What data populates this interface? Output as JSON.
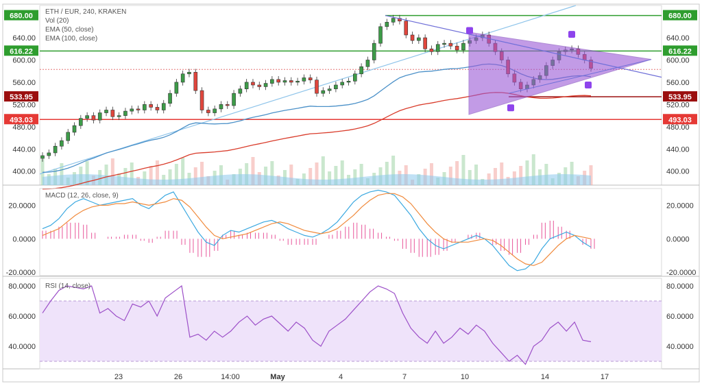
{
  "chart_data": [
    {
      "type": "candlestick",
      "title": "ETH / EUR, 240, KRAKEN",
      "indicator_labels": [
        "Vol (20)",
        "EMA (50, close)",
        "EMA (100, close)"
      ],
      "x_ticks": [
        "23",
        "26",
        "14:00",
        "May",
        "4",
        "7",
        "10",
        "14",
        "17"
      ],
      "y_ticks": [
        400,
        440,
        480,
        520,
        560,
        600,
        640,
        680
      ],
      "ylim": [
        375,
        698
      ],
      "price_tags": [
        {
          "value": "680.00",
          "color": "#2e9d2e"
        },
        {
          "value": "616.22",
          "color": "#2e9d2e"
        },
        {
          "value": "533.95",
          "color": "#9b0e0e"
        },
        {
          "value": "493.03",
          "color": "#e53935"
        }
      ],
      "left_tags_only": [
        "680.00",
        "616.22",
        "533.95",
        "493.03"
      ],
      "levels": [
        {
          "value": 680,
          "color": "#2e9d2e"
        },
        {
          "value": 616.22,
          "color": "#2e9d2e"
        },
        {
          "value": 533.95,
          "color": "#9b0e0e"
        },
        {
          "value": 493.03,
          "color": "#e53935"
        }
      ],
      "colors": {
        "up": "#3d9b48",
        "down": "#e0463d",
        "ema50": "#4a90c8",
        "ema100": "#d93b2a",
        "triangle": "#9b59d6",
        "trend": "#6f6fd8"
      },
      "close_sample": [
        428,
        433,
        445,
        455,
        470,
        482,
        495,
        500,
        492,
        505,
        510,
        498,
        500,
        508,
        512,
        510,
        520,
        515,
        510,
        522,
        540,
        560,
        575,
        578,
        545,
        510,
        505,
        512,
        520,
        518,
        540,
        548,
        560,
        555,
        552,
        558,
        565,
        560,
        563,
        560,
        562,
        568,
        564,
        540,
        545,
        548,
        555,
        560,
        562,
        575,
        588,
        600,
        630,
        660,
        668,
        675,
        670,
        645,
        635,
        640,
        620,
        615,
        628,
        630,
        625,
        618,
        630,
        635,
        640,
        645,
        630,
        615,
        600,
        575,
        560,
        548,
        555,
        565,
        572,
        590,
        600,
        615,
        618,
        620,
        610,
        600,
        585
      ]
    },
    {
      "type": "line",
      "title": "MACD (12, 26, close, 9)",
      "y_ticks": [
        "20.0000",
        "0.0000",
        "-20.0000"
      ],
      "ylim": [
        -22,
        30
      ],
      "series": [
        {
          "name": "MACD",
          "color": "#3aa8e0",
          "values": [
            6,
            8,
            12,
            18,
            22,
            24,
            22,
            20,
            21,
            22,
            23,
            24,
            20,
            18,
            22,
            26,
            28,
            20,
            12,
            4,
            -2,
            -4,
            2,
            5,
            4,
            6,
            8,
            10,
            11,
            9,
            6,
            4,
            2,
            1,
            3,
            6,
            10,
            16,
            22,
            26,
            28,
            29,
            28,
            26,
            20,
            14,
            6,
            0,
            -4,
            -6,
            -4,
            -2,
            0,
            2,
            0,
            -4,
            -10,
            -16,
            -19,
            -18,
            -14,
            -6,
            0,
            2,
            4,
            2,
            -2,
            -5
          ]
        },
        {
          "name": "Signal",
          "color": "#f08a3c",
          "values": [
            2,
            4,
            6,
            10,
            14,
            17,
            19,
            20,
            20,
            21,
            21,
            22,
            21,
            20,
            21,
            22,
            24,
            23,
            19,
            13,
            7,
            2,
            0,
            1,
            2,
            3,
            5,
            7,
            9,
            10,
            9,
            7,
            5,
            4,
            3,
            4,
            6,
            10,
            14,
            19,
            23,
            26,
            27,
            27,
            25,
            21,
            15,
            9,
            4,
            0,
            -2,
            -2,
            -2,
            -1,
            0,
            -1,
            -4,
            -8,
            -12,
            -15,
            -16,
            -14,
            -9,
            -4,
            0,
            2,
            1,
            0
          ]
        }
      ],
      "histogram_color": "#e8559a"
    },
    {
      "type": "line",
      "title": "RSI (14, close)",
      "y_ticks": [
        "80.0000",
        "60.0000",
        "40.0000"
      ],
      "ylim": [
        25,
        85
      ],
      "band": [
        30,
        70
      ],
      "series": [
        {
          "name": "RSI",
          "color": "#9c4fc8",
          "values": [
            62,
            70,
            77,
            80,
            79,
            78,
            80,
            62,
            65,
            60,
            57,
            68,
            66,
            70,
            60,
            72,
            76,
            80,
            46,
            48,
            44,
            50,
            46,
            50,
            56,
            60,
            54,
            58,
            60,
            55,
            50,
            56,
            52,
            44,
            40,
            50,
            54,
            58,
            64,
            70,
            76,
            80,
            78,
            75,
            62,
            52,
            46,
            42,
            50,
            42,
            46,
            52,
            48,
            54,
            50,
            42,
            36,
            30,
            34,
            28,
            40,
            44,
            52,
            56,
            50,
            56,
            44,
            43
          ]
        }
      ]
    }
  ],
  "ui": {
    "bottom_left_tag_680": "680.00",
    "bottom_left_tag_616": "616.22",
    "bottom_left_tag_533": "533.95",
    "bottom_left_tag_493": "493.03"
  }
}
